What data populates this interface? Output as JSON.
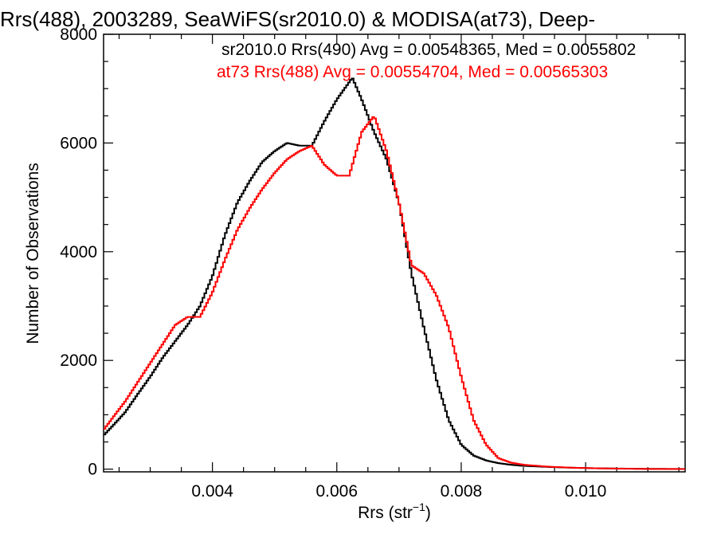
{
  "chart_data": {
    "type": "line",
    "title": "Rrs(488), 2003289, SeaWiFS(sr2010.0) & MODISA(at73), Deep-",
    "xlabel": "Rrs (str",
    "xlabel_sup": "−1",
    "xlabel_suffix": ")",
    "ylabel": "Number of Observations",
    "xlim": [
      0.00225,
      0.0116
    ],
    "ylim": [
      -50,
      8000
    ],
    "x_ticks": [
      0.004,
      0.006,
      0.008,
      0.01
    ],
    "x_tick_labels": [
      "0.004",
      "0.006",
      "0.008",
      "0.010"
    ],
    "y_ticks": [
      0,
      2000,
      4000,
      6000,
      8000
    ],
    "y_tick_labels": [
      "0",
      "2000",
      "4000",
      "6000",
      "8000"
    ],
    "grid": false,
    "legend_position": "top-right",
    "series": [
      {
        "name": "sr2010.0 Rrs(490)",
        "legend": "sr2010.0 Rrs(490) Avg = 0.00548365, Med = 0.0055802",
        "color": "#000000",
        "points": [
          [
            0.00225,
            620
          ],
          [
            0.0024,
            800
          ],
          [
            0.0026,
            1050
          ],
          [
            0.0028,
            1380
          ],
          [
            0.003,
            1700
          ],
          [
            0.0032,
            2050
          ],
          [
            0.0034,
            2350
          ],
          [
            0.0036,
            2650
          ],
          [
            0.0038,
            3000
          ],
          [
            0.004,
            3550
          ],
          [
            0.0042,
            4300
          ],
          [
            0.0044,
            4900
          ],
          [
            0.0046,
            5300
          ],
          [
            0.0048,
            5650
          ],
          [
            0.005,
            5850
          ],
          [
            0.0052,
            6000
          ],
          [
            0.0054,
            5950
          ],
          [
            0.0056,
            5950
          ],
          [
            0.0058,
            6400
          ],
          [
            0.006,
            6800
          ],
          [
            0.00625,
            7200
          ],
          [
            0.0064,
            6800
          ],
          [
            0.0066,
            6200
          ],
          [
            0.0068,
            5700
          ],
          [
            0.007,
            4900
          ],
          [
            0.0072,
            3600
          ],
          [
            0.0074,
            2600
          ],
          [
            0.0076,
            1650
          ],
          [
            0.0078,
            900
          ],
          [
            0.008,
            450
          ],
          [
            0.0082,
            250
          ],
          [
            0.0084,
            160
          ],
          [
            0.0086,
            110
          ],
          [
            0.0088,
            80
          ],
          [
            0.009,
            60
          ],
          [
            0.0094,
            40
          ],
          [
            0.0098,
            25
          ],
          [
            0.0102,
            15
          ],
          [
            0.0106,
            10
          ],
          [
            0.011,
            5
          ],
          [
            0.0116,
            3
          ]
        ]
      },
      {
        "name": "at73 Rrs(488)",
        "legend": "at73 Rrs(488) Avg = 0.00554704, Med = 0.00565303",
        "color": "#ff0000",
        "points": [
          [
            0.00225,
            720
          ],
          [
            0.0024,
            950
          ],
          [
            0.0026,
            1250
          ],
          [
            0.0028,
            1600
          ],
          [
            0.003,
            1950
          ],
          [
            0.0032,
            2300
          ],
          [
            0.0034,
            2650
          ],
          [
            0.0036,
            2800
          ],
          [
            0.0038,
            2800
          ],
          [
            0.004,
            3250
          ],
          [
            0.0042,
            3850
          ],
          [
            0.0044,
            4400
          ],
          [
            0.0046,
            4800
          ],
          [
            0.0048,
            5150
          ],
          [
            0.005,
            5450
          ],
          [
            0.0052,
            5700
          ],
          [
            0.0054,
            5850
          ],
          [
            0.0056,
            5950
          ],
          [
            0.0058,
            5600
          ],
          [
            0.006,
            5400
          ],
          [
            0.0062,
            5400
          ],
          [
            0.0064,
            6200
          ],
          [
            0.0066,
            6500
          ],
          [
            0.0068,
            5850
          ],
          [
            0.007,
            4900
          ],
          [
            0.0072,
            3750
          ],
          [
            0.0074,
            3600
          ],
          [
            0.0076,
            3200
          ],
          [
            0.0078,
            2600
          ],
          [
            0.008,
            1700
          ],
          [
            0.0082,
            900
          ],
          [
            0.0084,
            450
          ],
          [
            0.0086,
            200
          ],
          [
            0.0088,
            120
          ],
          [
            0.009,
            80
          ],
          [
            0.0094,
            45
          ],
          [
            0.0098,
            25
          ],
          [
            0.0102,
            15
          ],
          [
            0.0106,
            8
          ],
          [
            0.011,
            4
          ],
          [
            0.0116,
            2
          ]
        ]
      }
    ]
  }
}
